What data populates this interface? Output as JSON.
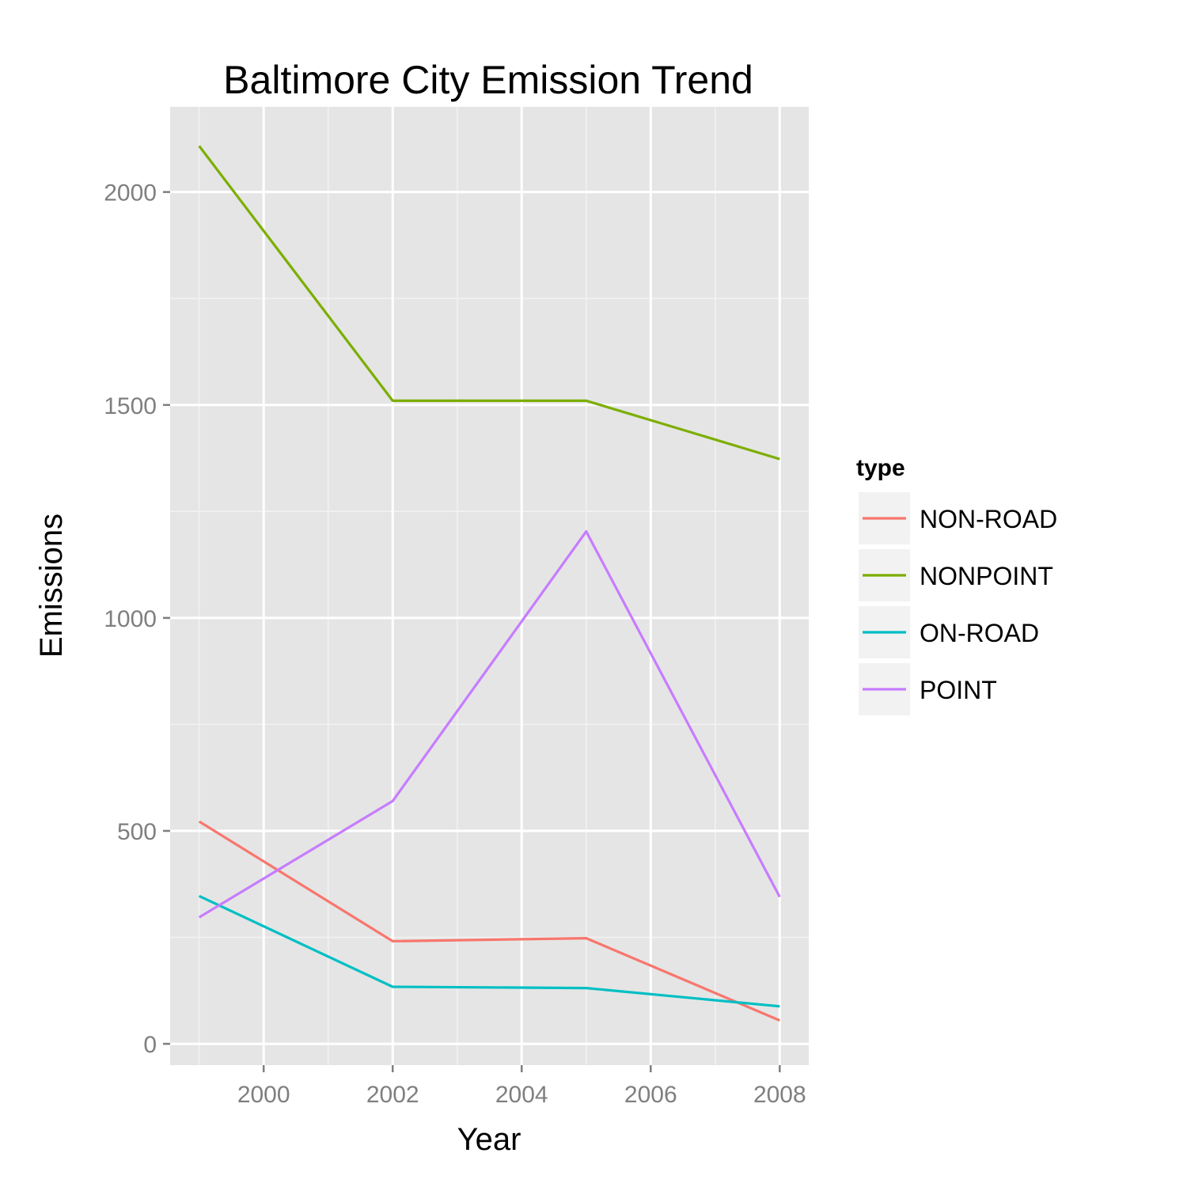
{
  "chart_data": {
    "type": "line",
    "title": "Baltimore City Emission Trend",
    "xlabel": "Year",
    "ylabel": "Emissions",
    "x": [
      1999,
      2002,
      2005,
      2008
    ],
    "xlim": [
      1998.55,
      2008.45
    ],
    "ylim": [
      -50,
      2200
    ],
    "xticks": [
      2000,
      2002,
      2004,
      2006,
      2008
    ],
    "yticks": [
      0,
      500,
      1000,
      1500,
      2000
    ],
    "grid": true,
    "legend": {
      "title": "type",
      "position": "right"
    },
    "series": [
      {
        "name": "NON-ROAD",
        "color": "#F8766D",
        "values": [
          522,
          241,
          248,
          55
        ]
      },
      {
        "name": "NONPOINT",
        "color": "#7CAE00",
        "values": [
          2108,
          1510,
          1510,
          1373
        ]
      },
      {
        "name": "ON-ROAD",
        "color": "#00BFC4",
        "values": [
          347,
          134,
          131,
          88
        ]
      },
      {
        "name": "POINT",
        "color": "#C77CFF",
        "values": [
          297,
          570,
          1203,
          345
        ]
      }
    ]
  }
}
